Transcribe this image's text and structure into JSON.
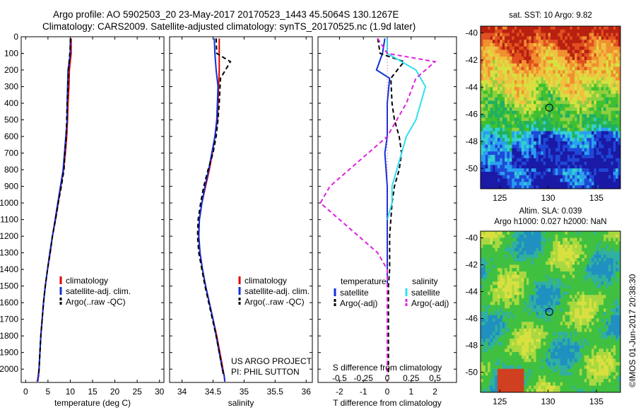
{
  "title": {
    "line1": "Argo profile: AO 5902503_20 23-May-2017 20170523_1443 45.5064S 130.1267E",
    "line2": "Climatology: CARS2009. Satellite-adjusted climatology: synTS_20170525.nc (1.9d later)"
  },
  "stamp": "©IMOS 01-Jun-2017 20:38:30",
  "colors": {
    "climatology": "#e00000",
    "satellite": "#1030d8",
    "argo": "#000000",
    "sal_satellite": "#30e0f0",
    "sal_argo": "#e020e0"
  },
  "chart_data": [
    {
      "type": "line",
      "panel": "temperature",
      "xlabel": "temperature (deg C)",
      "ylabel": "",
      "xlim": [
        -1,
        31
      ],
      "ylim": [
        2080,
        0
      ],
      "xticks": [
        0,
        5,
        10,
        15,
        20,
        25,
        30
      ],
      "yticks": [
        0,
        100,
        200,
        300,
        400,
        500,
        600,
        700,
        800,
        900,
        1000,
        1100,
        1200,
        1300,
        1400,
        1500,
        1600,
        1700,
        1800,
        1900,
        2000
      ],
      "legend": [
        "climatology",
        "satellite-adj. clim.",
        "Argo(..raw -QC)"
      ],
      "legend_position": "lower-right",
      "series": [
        {
          "name": "climatology",
          "color": "climatology",
          "dash": "solid",
          "x": [
            10.2,
            10.2,
            9.8,
            9.7,
            9.5,
            9.4,
            9.2,
            8.9,
            8.5,
            7.9,
            7.3,
            6.7,
            6.0,
            5.5,
            4.9,
            4.4,
            4.0,
            3.7,
            3.4,
            3.2,
            3.0,
            2.9,
            2.8,
            2.7,
            2.6,
            2.6
          ],
          "y": [
            10,
            100,
            200,
            300,
            400,
            500,
            600,
            700,
            800,
            900,
            1000,
            1100,
            1200,
            1300,
            1400,
            1500,
            1600,
            1700,
            1800,
            1900,
            2000,
            2020,
            2040,
            2060,
            2070,
            2075
          ]
        },
        {
          "name": "satellite-adj. clim.",
          "color": "satellite",
          "dash": "solid",
          "x": [
            10.0,
            10.0,
            9.5,
            9.4,
            9.3,
            9.3,
            9.0,
            8.7,
            8.4,
            7.8,
            7.2,
            6.6,
            6.0,
            5.4,
            4.9,
            4.4,
            4.0,
            3.7,
            3.4,
            3.2,
            3.0,
            2.9,
            2.7
          ],
          "y": [
            10,
            100,
            200,
            300,
            400,
            500,
            600,
            700,
            800,
            900,
            1000,
            1100,
            1200,
            1300,
            1400,
            1500,
            1600,
            1700,
            1800,
            1900,
            2000,
            2040,
            2075
          ]
        },
        {
          "name": "Argo(..raw -QC)",
          "color": "argo",
          "dash": "dashed",
          "x": [
            10.1,
            9.9,
            9.6,
            9.5,
            9.3,
            9.2,
            9.1,
            8.8,
            8.6,
            8.0,
            7.3,
            6.7,
            6.0,
            5.5,
            4.9,
            4.4,
            4.0,
            3.7,
            3.4,
            3.2,
            3.0,
            2.9
          ],
          "y": [
            10,
            100,
            200,
            300,
            400,
            500,
            600,
            700,
            800,
            900,
            1000,
            1100,
            1200,
            1300,
            1400,
            1500,
            1600,
            1700,
            1800,
            1900,
            2000,
            2040
          ]
        }
      ]
    },
    {
      "type": "line",
      "panel": "salinity",
      "xlabel": "salinity",
      "ylabel": "",
      "xlim": [
        33.8,
        36.1
      ],
      "ylim": [
        2080,
        0
      ],
      "xticks": [
        34,
        34.5,
        35,
        35.5,
        36
      ],
      "xtick_labels": [
        "34",
        "34.5",
        "35",
        "35.5",
        "36"
      ],
      "legend": [
        "climatology",
        "satellite-adj. clim.",
        "Argo(..raw -QC)"
      ],
      "legend_position": "lower-right",
      "annotation": [
        "US ARGO PROJECT",
        "PI: PHIL SUTTON"
      ],
      "series": [
        {
          "name": "climatology",
          "color": "climatology",
          "dash": "solid",
          "x": [
            34.6,
            34.6,
            34.6,
            34.59,
            34.58,
            34.57,
            34.53,
            34.49,
            34.44,
            34.38,
            34.32,
            34.28,
            34.27,
            34.29,
            34.33,
            34.38,
            34.44,
            34.5,
            34.56,
            34.61,
            34.66,
            34.68,
            34.69
          ],
          "y": [
            10,
            100,
            200,
            300,
            400,
            500,
            600,
            700,
            800,
            900,
            1000,
            1100,
            1200,
            1300,
            1400,
            1500,
            1600,
            1700,
            1800,
            1900,
            2000,
            2040,
            2075
          ]
        },
        {
          "name": "satellite-adj. clim.",
          "color": "satellite",
          "dash": "solid",
          "x": [
            34.52,
            34.53,
            34.55,
            34.58,
            34.57,
            34.56,
            34.53,
            34.48,
            34.43,
            34.37,
            34.32,
            34.28,
            34.27,
            34.29,
            34.33,
            34.38,
            34.44,
            34.5,
            34.55,
            34.6,
            34.65,
            34.68,
            34.69
          ],
          "y": [
            10,
            100,
            200,
            300,
            400,
            500,
            600,
            700,
            800,
            900,
            1000,
            1100,
            1200,
            1300,
            1400,
            1500,
            1600,
            1700,
            1800,
            1900,
            2000,
            2040,
            2075
          ]
        },
        {
          "name": "Argo(..raw -QC)",
          "color": "argo",
          "dash": "dashed",
          "x": [
            34.55,
            34.56,
            34.78,
            34.62,
            34.6,
            34.58,
            34.55,
            34.5,
            34.42,
            34.35,
            34.3,
            34.26,
            34.25,
            34.27,
            34.32,
            34.37,
            34.43,
            34.49,
            34.55,
            34.6,
            34.65,
            34.67
          ],
          "y": [
            10,
            100,
            150,
            250,
            400,
            500,
            600,
            700,
            800,
            900,
            1000,
            1100,
            1200,
            1300,
            1400,
            1500,
            1600,
            1700,
            1800,
            1900,
            2000,
            2040
          ]
        }
      ]
    },
    {
      "type": "line",
      "panel": "difference",
      "xlabel": "T difference from climatology",
      "xlabel_top": "S difference from climatology",
      "xlim": [
        -2.9,
        2.9
      ],
      "ylim": [
        2080,
        0
      ],
      "xticks": [
        -2,
        -1,
        0,
        1,
        2
      ],
      "xticks_S": [
        -0.5,
        -0.25,
        0,
        0.25,
        0.5
      ],
      "xtick_labels_S": [
        "-0.5",
        "-0.25",
        "0",
        "0.25",
        "0.5"
      ],
      "legend": {
        "temperature_header": "temperature",
        "salinity_header": "salinity",
        "temperature_items": [
          "satellite",
          "Argo(-adj)"
        ],
        "salinity_items": [
          "satellite",
          "Argo(-adj)"
        ]
      },
      "legend_position": "lower-right",
      "series": [
        {
          "name": "satellite",
          "color": "satellite",
          "dash": "solid",
          "x": [
            -0.1,
            -0.2,
            -0.45,
            0.1,
            0.0,
            0.0,
            -0.1,
            -0.05,
            0.0,
            0.0,
            0.0,
            0.0,
            0.0,
            0.0,
            0.0
          ],
          "y": [
            10,
            100,
            200,
            250,
            400,
            600,
            700,
            800,
            900,
            1000,
            1100,
            1200,
            1300,
            1400,
            1500
          ]
        },
        {
          "name": "Argo(-adj)",
          "color": "argo",
          "dash": "dashed",
          "x": [
            -0.4,
            -0.3,
            0.7,
            0.15,
            0.2,
            0.3,
            0.5,
            0.6,
            0.5,
            0.3,
            0.2,
            0.15,
            0.1,
            0.1,
            0.1,
            0.05,
            0.05,
            0.05,
            0.05,
            0.05,
            0.05
          ],
          "y": [
            10,
            100,
            150,
            250,
            400,
            500,
            600,
            700,
            800,
            900,
            1000,
            1100,
            1200,
            1300,
            1400,
            1500,
            1600,
            1700,
            1800,
            1900,
            2040
          ]
        },
        {
          "name": "salinity satellite",
          "color": "sal_satellite",
          "dash": "solid",
          "x": [
            0.0,
            0.0,
            0.3,
            0.4,
            0.35,
            0.3,
            0.2,
            0.15,
            0.1,
            0.05,
            0.05,
            0.0
          ],
          "y": [
            10,
            100,
            200,
            300,
            400,
            500,
            600,
            700,
            800,
            900,
            1000,
            1100
          ]
        },
        {
          "name": "salinity Argo(-adj)",
          "color": "sal_argo",
          "dash": "dashed",
          "x": [
            -0.1,
            0.0,
            0.5,
            0.3,
            0.2,
            0.1,
            0.0,
            -0.2,
            -0.4,
            -0.6,
            -0.7,
            -0.5,
            -0.3,
            -0.1,
            0.0,
            0.0,
            0.0,
            0.0,
            0.0,
            0.0
          ],
          "y": [
            10,
            100,
            150,
            250,
            400,
            500,
            600,
            700,
            800,
            900,
            1000,
            1100,
            1200,
            1300,
            1400,
            1500,
            1600,
            1700,
            1800,
            2040
          ]
        }
      ]
    },
    {
      "type": "heatmap",
      "panel": "sst_map",
      "title": "sat. SST: 10 Argo: 9.82",
      "xlim": [
        123,
        137.5
      ],
      "ylim": [
        -51.5,
        -39.5
      ],
      "xticks": [
        125,
        130,
        135
      ],
      "yticks": [
        -40,
        -42,
        -44,
        -46,
        -48,
        -50
      ],
      "marker": {
        "lon": 130.13,
        "lat": -45.51
      }
    },
    {
      "type": "heatmap",
      "panel": "sla_map",
      "title": "Altim. SLA: 0.039",
      "subtitle": "Argo h1000: 0.027 h2000: NaN",
      "xlim": [
        123,
        137.5
      ],
      "ylim": [
        -51.5,
        -39.5
      ],
      "xticks": [
        125,
        130,
        135
      ],
      "yticks": [
        -40,
        -42,
        -44,
        -46,
        -48,
        -50
      ],
      "marker": {
        "lon": 130.13,
        "lat": -45.51
      }
    }
  ]
}
